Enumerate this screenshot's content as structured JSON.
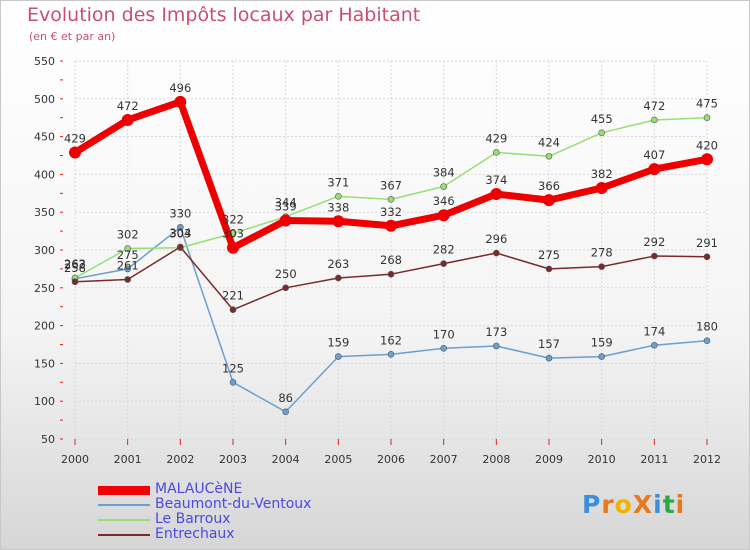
{
  "title": "Evolution des Impôts locaux par Habitant",
  "subtitle": "(en € et par an)",
  "logo_text": "ProXiti",
  "chart_data": {
    "type": "line",
    "title": "Evolution des Impôts locaux par Habitant",
    "subtitle": "(en € et par an)",
    "xlabel": "",
    "ylabel": "",
    "x": [
      "2000",
      "2001",
      "2002",
      "2003",
      "2004",
      "2005",
      "2006",
      "2007",
      "2008",
      "2009",
      "2010",
      "2011",
      "2012"
    ],
    "ylim": [
      50,
      550
    ],
    "yticks": [
      50,
      100,
      150,
      200,
      250,
      300,
      350,
      400,
      450,
      500,
      550
    ],
    "grid": true,
    "legend_position": "bottom-left",
    "series": [
      {
        "name": "MALAUCèNE",
        "color": "#ee0000",
        "width": 7,
        "values": [
          429,
          472,
          496,
          303,
          339,
          338,
          332,
          346,
          374,
          366,
          382,
          407,
          420
        ]
      },
      {
        "name": "Beaumont-du-Ventoux",
        "color": "#6a9fd0",
        "width": 1.5,
        "values": [
          262,
          275,
          330,
          125,
          86,
          159,
          162,
          170,
          173,
          157,
          159,
          174,
          180
        ]
      },
      {
        "name": "Le Barroux",
        "color": "#99dd77",
        "width": 1.5,
        "values": [
          263,
          302,
          303,
          322,
          344,
          371,
          367,
          384,
          429,
          424,
          455,
          472,
          475
        ]
      },
      {
        "name": "Entrechaux",
        "color": "#7a2a2a",
        "width": 1.5,
        "values": [
          258,
          261,
          304,
          221,
          250,
          263,
          268,
          282,
          296,
          275,
          278,
          292,
          291
        ]
      }
    ]
  }
}
